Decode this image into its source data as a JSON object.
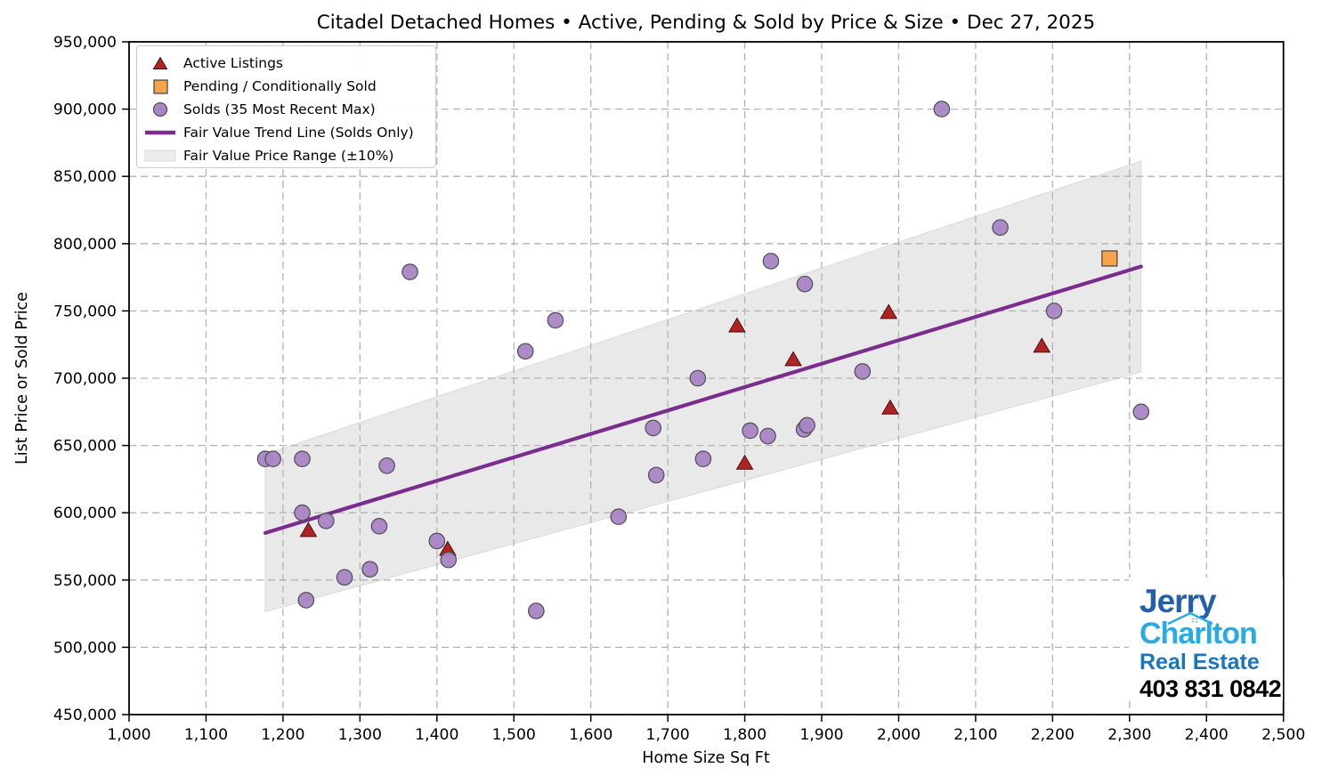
{
  "title": "Citadel Detached Homes • Active, Pending & Sold by Price & Size • Dec 27, 2025",
  "axes": {
    "xlabel": "Home Size Sq Ft",
    "ylabel": "List Price or Sold Price",
    "x_tick_values": [
      1000,
      1100,
      1200,
      1300,
      1400,
      1500,
      1600,
      1700,
      1800,
      1900,
      2000,
      2100,
      2200,
      2300,
      2400,
      2500
    ],
    "x_tick_labels": [
      "1,000",
      "1,100",
      "1,200",
      "1,300",
      "1,400",
      "1,500",
      "1,600",
      "1,700",
      "1,800",
      "1,900",
      "2,000",
      "2,100",
      "2,200",
      "2,300",
      "2,400",
      "2,500"
    ],
    "y_tick_values": [
      450000,
      500000,
      550000,
      600000,
      650000,
      700000,
      750000,
      800000,
      850000,
      900000,
      950000
    ],
    "y_tick_labels": [
      "450,000",
      "500,000",
      "550,000",
      "600,000",
      "650,000",
      "700,000",
      "750,000",
      "800,000",
      "850,000",
      "900,000",
      "950,000"
    ]
  },
  "legend": {
    "items": [
      {
        "label": "Active Listings",
        "marker": "triangle"
      },
      {
        "label": "Pending / Conditionally Sold",
        "marker": "square"
      },
      {
        "label": "Solds (35 Most Recent Max)",
        "marker": "circle"
      },
      {
        "label": "Fair Value Trend Line (Solds Only)",
        "marker": "line"
      },
      {
        "label": "Fair Value Price Range (±10%)",
        "marker": "band"
      }
    ]
  },
  "chart_data": {
    "type": "scatter",
    "title": "Citadel Detached Homes • Active, Pending & Sold by Price & Size • Dec 27, 2025",
    "xlabel": "Home Size Sq Ft",
    "ylabel": "List Price or Sold Price",
    "xlim": [
      1000,
      2500
    ],
    "ylim": [
      450000,
      950000
    ],
    "grid": true,
    "legend_position": "upper left",
    "series": [
      {
        "name": "Active Listings",
        "marker": "triangle",
        "color": "#b22222",
        "edge_color": "#421010",
        "points": [
          [
            1233,
            587000
          ],
          [
            1414,
            573000
          ],
          [
            1790,
            739000
          ],
          [
            1800,
            637000
          ],
          [
            1863,
            714000
          ],
          [
            1987,
            749000
          ],
          [
            1989,
            678000
          ],
          [
            2186,
            724000
          ]
        ]
      },
      {
        "name": "Pending / Conditionally Sold",
        "marker": "square",
        "color": "#f7a34c",
        "edge_color": "#424242",
        "points": [
          [
            2274,
            789000
          ]
        ]
      },
      {
        "name": "Solds (35 Most Recent Max)",
        "marker": "circle",
        "color": "#a885c5",
        "edge_color": "#4f4f4f",
        "points": [
          [
            1177,
            640000
          ],
          [
            1187,
            640000
          ],
          [
            1225,
            640000
          ],
          [
            1225,
            600000
          ],
          [
            1230,
            535000
          ],
          [
            1256,
            594000
          ],
          [
            1280,
            552000
          ],
          [
            1313,
            558000
          ],
          [
            1325,
            590000
          ],
          [
            1335,
            635000
          ],
          [
            1365,
            779000
          ],
          [
            1400,
            579000
          ],
          [
            1415,
            565000
          ],
          [
            1515,
            720000
          ],
          [
            1529,
            527000
          ],
          [
            1554,
            743000
          ],
          [
            1636,
            597000
          ],
          [
            1681,
            663000
          ],
          [
            1685,
            628000
          ],
          [
            1739,
            700000
          ],
          [
            1746,
            640000
          ],
          [
            1807,
            661000
          ],
          [
            1830,
            657000
          ],
          [
            1834,
            787000
          ],
          [
            1877,
            662000
          ],
          [
            1881,
            665000
          ],
          [
            1878,
            770000
          ],
          [
            1953,
            705000
          ],
          [
            2056,
            900000
          ],
          [
            2132,
            812000
          ],
          [
            2202,
            750000
          ],
          [
            2315,
            675000
          ]
        ]
      }
    ],
    "trend_line": {
      "name": "Fair Value Trend Line (Solds Only)",
      "color": "#7b2d8e",
      "points": [
        [
          1177,
          585000
        ],
        [
          2315,
          783000
        ]
      ]
    },
    "band": {
      "name": "Fair Value Price Range (±10%)",
      "percent": 10,
      "color": "#e9e9e9",
      "edge_color": "#d9d9d9",
      "upper": [
        [
          1177,
          643500
        ],
        [
          2315,
          861300
        ]
      ],
      "lower": [
        [
          1177,
          526500
        ],
        [
          2315,
          704700
        ]
      ]
    }
  },
  "colors": {
    "active": "#b22222",
    "pending": "#f7a34c",
    "sold": "#a885c5",
    "trend": "#7b2d8e",
    "band": "#e9e9e9",
    "grid": "#b3b3b3",
    "axis": "#000000",
    "logo_dark_blue": "#2160ab",
    "logo_light_blue": "#29abe2",
    "logo_mid_blue": "#1b75bc"
  },
  "logo": {
    "line1": "Jerry",
    "line2": "Charlton",
    "line3": "Real Estate",
    "phone": "403 831 0842"
  }
}
